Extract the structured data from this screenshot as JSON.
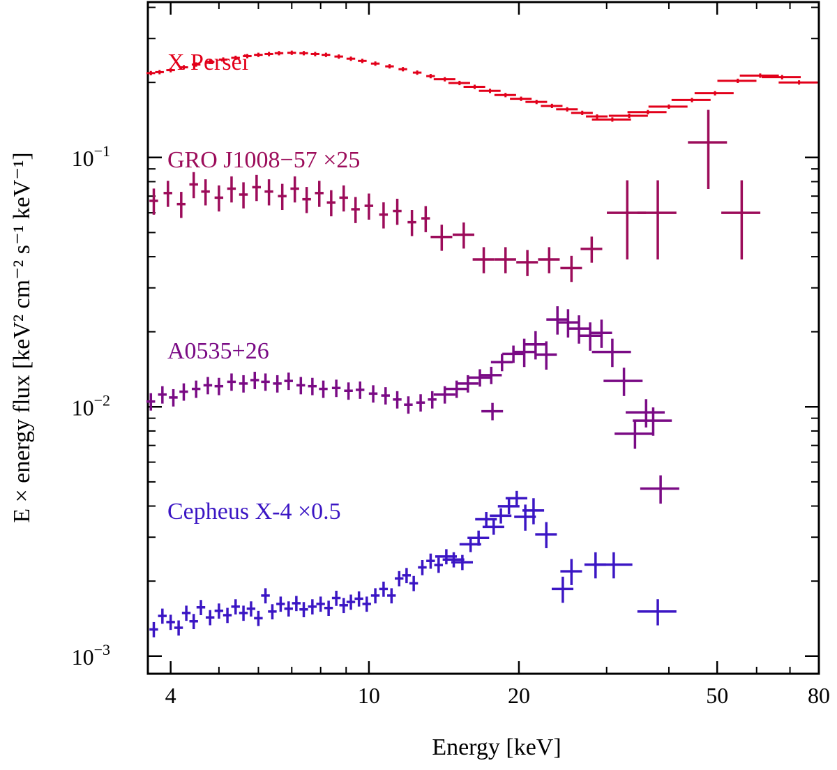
{
  "chart_data": {
    "type": "scatter",
    "xlabel": "Energy [keV]",
    "ylabel": "E × energy flux [keV² cm⁻² s⁻¹ keV⁻¹]",
    "x_scale": "log",
    "y_scale": "log",
    "xlim": [
      3.6,
      80
    ],
    "ylim": [
      0.00085,
      0.42
    ],
    "x_ticks": [
      {
        "value": 4,
        "label": "4"
      },
      {
        "value": 10,
        "label": "10"
      },
      {
        "value": 20,
        "label": "20"
      },
      {
        "value": 50,
        "label": "50"
      },
      {
        "value": 80,
        "label": "80"
      }
    ],
    "y_ticks": [
      {
        "value": 0.001,
        "base": "10",
        "exp": "−3"
      },
      {
        "value": 0.01,
        "base": "10",
        "exp": "−2"
      },
      {
        "value": 0.1,
        "base": "10",
        "exp": "−1"
      }
    ],
    "grid": false,
    "series": [
      {
        "name": "X Persei",
        "color": "#e2001a",
        "points": [
          {
            "x": 3.65,
            "y": 0.218
          },
          {
            "x": 3.8,
            "y": 0.22
          },
          {
            "x": 4.0,
            "y": 0.224
          },
          {
            "x": 4.25,
            "y": 0.23
          },
          {
            "x": 4.5,
            "y": 0.236
          },
          {
            "x": 4.8,
            "y": 0.242
          },
          {
            "x": 5.1,
            "y": 0.247
          },
          {
            "x": 5.4,
            "y": 0.251
          },
          {
            "x": 5.7,
            "y": 0.255
          },
          {
            "x": 6.0,
            "y": 0.258
          },
          {
            "x": 6.3,
            "y": 0.26
          },
          {
            "x": 6.6,
            "y": 0.262
          },
          {
            "x": 7.0,
            "y": 0.263
          },
          {
            "x": 7.4,
            "y": 0.262
          },
          {
            "x": 7.8,
            "y": 0.26
          },
          {
            "x": 8.2,
            "y": 0.258
          },
          {
            "x": 8.7,
            "y": 0.254
          },
          {
            "x": 9.2,
            "y": 0.249
          },
          {
            "x": 9.7,
            "y": 0.244
          },
          {
            "x": 10.3,
            "y": 0.238
          },
          {
            "x": 11.0,
            "y": 0.232
          },
          {
            "x": 11.7,
            "y": 0.226
          },
          {
            "x": 12.5,
            "y": 0.219
          },
          {
            "x": 13.3,
            "y": 0.212
          },
          {
            "x": 14.2,
            "y": 0.206
          },
          {
            "x": 15.2,
            "y": 0.199
          },
          {
            "x": 16.3,
            "y": 0.192
          },
          {
            "x": 17.5,
            "y": 0.185
          },
          {
            "x": 18.8,
            "y": 0.178
          },
          {
            "x": 20.2,
            "y": 0.172
          },
          {
            "x": 21.7,
            "y": 0.167
          },
          {
            "x": 23.3,
            "y": 0.161
          },
          {
            "x": 25.0,
            "y": 0.156
          },
          {
            "x": 26.8,
            "y": 0.151
          },
          {
            "x": 28.7,
            "y": 0.146
          },
          {
            "x": 30.8,
            "y": 0.142
          },
          {
            "x": 33.3,
            "y": 0.147
          },
          {
            "x": 36.3,
            "y": 0.152
          },
          {
            "x": 40.0,
            "y": 0.16
          },
          {
            "x": 44.5,
            "y": 0.17
          },
          {
            "x": 49.5,
            "y": 0.181
          },
          {
            "x": 55.0,
            "y": 0.203
          },
          {
            "x": 61.0,
            "y": 0.213
          },
          {
            "x": 67.5,
            "y": 0.21
          },
          {
            "x": 73.0,
            "y": 0.2
          }
        ]
      },
      {
        "name": "GRO J1008−57 ×25",
        "color": "#9c0c5a",
        "points": [
          {
            "x": 3.7,
            "y": 0.067
          },
          {
            "x": 3.95,
            "y": 0.072
          },
          {
            "x": 4.2,
            "y": 0.065
          },
          {
            "x": 4.45,
            "y": 0.078
          },
          {
            "x": 4.7,
            "y": 0.073
          },
          {
            "x": 5.0,
            "y": 0.069
          },
          {
            "x": 5.3,
            "y": 0.075
          },
          {
            "x": 5.6,
            "y": 0.071
          },
          {
            "x": 5.95,
            "y": 0.076
          },
          {
            "x": 6.3,
            "y": 0.073
          },
          {
            "x": 6.7,
            "y": 0.07
          },
          {
            "x": 7.1,
            "y": 0.075
          },
          {
            "x": 7.5,
            "y": 0.068
          },
          {
            "x": 7.95,
            "y": 0.072
          },
          {
            "x": 8.4,
            "y": 0.066
          },
          {
            "x": 8.9,
            "y": 0.069
          },
          {
            "x": 9.4,
            "y": 0.062
          },
          {
            "x": 10.0,
            "y": 0.064
          },
          {
            "x": 10.7,
            "y": 0.059
          },
          {
            "x": 11.4,
            "y": 0.061
          },
          {
            "x": 12.2,
            "y": 0.055
          },
          {
            "x": 13.0,
            "y": 0.057
          },
          {
            "x": 14.0,
            "y": 0.048
          },
          {
            "x": 15.5,
            "y": 0.049
          },
          {
            "x": 17.0,
            "y": 0.039
          },
          {
            "x": 18.8,
            "y": 0.039
          },
          {
            "x": 20.8,
            "y": 0.038
          },
          {
            "x": 23.0,
            "y": 0.039
          },
          {
            "x": 25.5,
            "y": 0.036
          },
          {
            "x": 28.0,
            "y": 0.043
          },
          {
            "x": 33.0,
            "y": 0.06
          },
          {
            "x": 38.0,
            "y": 0.06
          },
          {
            "x": 48.0,
            "y": 0.115
          },
          {
            "x": 56.0,
            "y": 0.06
          }
        ]
      },
      {
        "name": "A0535+26",
        "color": "#7a0b85",
        "points": [
          {
            "x": 3.65,
            "y": 0.0105
          },
          {
            "x": 3.85,
            "y": 0.0112
          },
          {
            "x": 4.05,
            "y": 0.0109
          },
          {
            "x": 4.25,
            "y": 0.0115
          },
          {
            "x": 4.5,
            "y": 0.0118
          },
          {
            "x": 4.75,
            "y": 0.0122
          },
          {
            "x": 5.0,
            "y": 0.0121
          },
          {
            "x": 5.3,
            "y": 0.0126
          },
          {
            "x": 5.6,
            "y": 0.0124
          },
          {
            "x": 5.9,
            "y": 0.0128
          },
          {
            "x": 6.2,
            "y": 0.0126
          },
          {
            "x": 6.55,
            "y": 0.0124
          },
          {
            "x": 6.9,
            "y": 0.0127
          },
          {
            "x": 7.3,
            "y": 0.0122
          },
          {
            "x": 7.7,
            "y": 0.0121
          },
          {
            "x": 8.1,
            "y": 0.0118
          },
          {
            "x": 8.6,
            "y": 0.0119
          },
          {
            "x": 9.1,
            "y": 0.0116
          },
          {
            "x": 9.6,
            "y": 0.0117
          },
          {
            "x": 10.2,
            "y": 0.0113
          },
          {
            "x": 10.8,
            "y": 0.0111
          },
          {
            "x": 11.4,
            "y": 0.0107
          },
          {
            "x": 12.0,
            "y": 0.0102
          },
          {
            "x": 12.7,
            "y": 0.0104
          },
          {
            "x": 13.4,
            "y": 0.0107
          },
          {
            "x": 14.2,
            "y": 0.0112
          },
          {
            "x": 15.0,
            "y": 0.0118
          },
          {
            "x": 15.8,
            "y": 0.0124
          },
          {
            "x": 16.7,
            "y": 0.0131
          },
          {
            "x": 17.6,
            "y": 0.0134
          },
          {
            "x": 18.5,
            "y": 0.0151
          },
          {
            "x": 19.5,
            "y": 0.0163
          },
          {
            "x": 20.5,
            "y": 0.0166
          },
          {
            "x": 21.6,
            "y": 0.0178
          },
          {
            "x": 22.7,
            "y": 0.0162
          },
          {
            "x": 23.9,
            "y": 0.0224
          },
          {
            "x": 25.1,
            "y": 0.0218
          },
          {
            "x": 26.4,
            "y": 0.0206
          },
          {
            "x": 27.8,
            "y": 0.0193
          },
          {
            "x": 29.3,
            "y": 0.0198
          },
          {
            "x": 30.8,
            "y": 0.0166
          },
          {
            "x": 32.5,
            "y": 0.0127
          },
          {
            "x": 34.2,
            "y": 0.0078
          },
          {
            "x": 36.0,
            "y": 0.0095
          },
          {
            "x": 37.2,
            "y": 0.0088
          },
          {
            "x": 38.5,
            "y": 0.0047
          },
          {
            "x": 17.7,
            "y": 0.0096
          }
        ]
      },
      {
        "name": "Cepheus X-4 ×0.5",
        "color": "#3b16c4",
        "points": [
          {
            "x": 3.7,
            "y": 0.00128
          },
          {
            "x": 3.85,
            "y": 0.00145
          },
          {
            "x": 4.0,
            "y": 0.00137
          },
          {
            "x": 4.15,
            "y": 0.0013
          },
          {
            "x": 4.3,
            "y": 0.00149
          },
          {
            "x": 4.45,
            "y": 0.00138
          },
          {
            "x": 4.6,
            "y": 0.00157
          },
          {
            "x": 4.8,
            "y": 0.00143
          },
          {
            "x": 5.0,
            "y": 0.00152
          },
          {
            "x": 5.2,
            "y": 0.00146
          },
          {
            "x": 5.4,
            "y": 0.00158
          },
          {
            "x": 5.6,
            "y": 0.00149
          },
          {
            "x": 5.8,
            "y": 0.00155
          },
          {
            "x": 6.0,
            "y": 0.00142
          },
          {
            "x": 6.2,
            "y": 0.00175
          },
          {
            "x": 6.4,
            "y": 0.00151
          },
          {
            "x": 6.65,
            "y": 0.00162
          },
          {
            "x": 6.9,
            "y": 0.00155
          },
          {
            "x": 7.15,
            "y": 0.00163
          },
          {
            "x": 7.4,
            "y": 0.00154
          },
          {
            "x": 7.7,
            "y": 0.00158
          },
          {
            "x": 8.0,
            "y": 0.00162
          },
          {
            "x": 8.3,
            "y": 0.00156
          },
          {
            "x": 8.6,
            "y": 0.00171
          },
          {
            "x": 8.9,
            "y": 0.0016
          },
          {
            "x": 9.2,
            "y": 0.00165
          },
          {
            "x": 9.55,
            "y": 0.0017
          },
          {
            "x": 9.9,
            "y": 0.00162
          },
          {
            "x": 10.3,
            "y": 0.00175
          },
          {
            "x": 10.7,
            "y": 0.00186
          },
          {
            "x": 11.1,
            "y": 0.00175
          },
          {
            "x": 11.5,
            "y": 0.00205
          },
          {
            "x": 11.9,
            "y": 0.00211
          },
          {
            "x": 12.3,
            "y": 0.00196
          },
          {
            "x": 12.8,
            "y": 0.00227
          },
          {
            "x": 13.3,
            "y": 0.00241
          },
          {
            "x": 13.8,
            "y": 0.00232
          },
          {
            "x": 14.3,
            "y": 0.00251
          },
          {
            "x": 14.8,
            "y": 0.00244
          },
          {
            "x": 15.4,
            "y": 0.00238
          },
          {
            "x": 16.0,
            "y": 0.00281
          },
          {
            "x": 16.6,
            "y": 0.00298
          },
          {
            "x": 17.2,
            "y": 0.00354
          },
          {
            "x": 17.8,
            "y": 0.0033
          },
          {
            "x": 18.4,
            "y": 0.00366
          },
          {
            "x": 19.1,
            "y": 0.00399
          },
          {
            "x": 19.8,
            "y": 0.0043
          },
          {
            "x": 20.6,
            "y": 0.00362
          },
          {
            "x": 21.4,
            "y": 0.00384
          },
          {
            "x": 22.7,
            "y": 0.00308
          },
          {
            "x": 24.5,
            "y": 0.00186
          },
          {
            "x": 25.5,
            "y": 0.00219
          },
          {
            "x": 28.5,
            "y": 0.00233
          },
          {
            "x": 31.0,
            "y": 0.00233
          },
          {
            "x": 38.0,
            "y": 0.00151
          }
        ]
      }
    ]
  }
}
